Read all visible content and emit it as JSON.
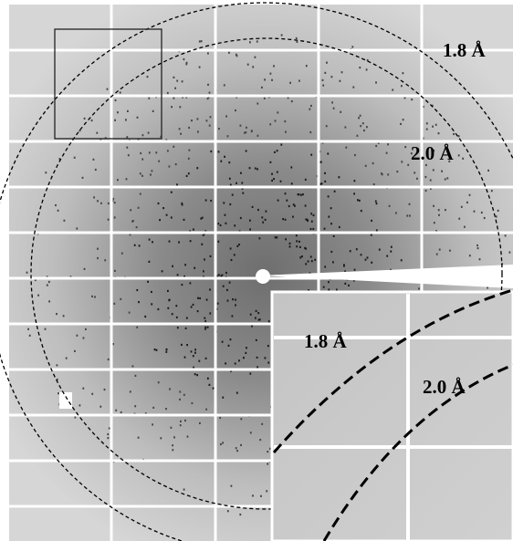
{
  "main_image": {
    "resolution_rings": [
      {
        "label": "1.8 Å"
      },
      {
        "label": "2.0 Å"
      }
    ]
  },
  "inset": {
    "resolution_rings": [
      {
        "label": "1.8 Å"
      },
      {
        "label": "2.0 Å"
      }
    ]
  }
}
